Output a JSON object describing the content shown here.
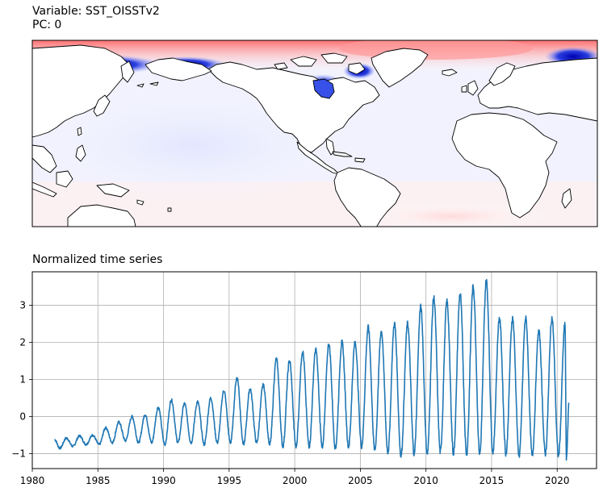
{
  "map_panel": {
    "title_line1": "Variable: SST_OISSTv2",
    "title_line2": "PC: 0",
    "colors": {
      "positive": "#ff0000",
      "negative": "#0000cc",
      "neutral": "#ffffff",
      "coast": "#000000"
    }
  },
  "chart_data": {
    "type": "line",
    "title": "Normalized time series",
    "xlabel": "",
    "ylabel": "",
    "xlim": [
      1980,
      2023
    ],
    "ylim": [
      -1.4,
      3.9
    ],
    "x_ticks": [
      1980,
      1985,
      1990,
      1995,
      2000,
      2005,
      2010,
      2015,
      2020
    ],
    "y_ticks": [
      -1,
      0,
      1,
      2,
      3
    ],
    "grid": true,
    "series_color": "#1f77b4",
    "x_range": [
      1981.7,
      2020.9
    ],
    "seasonal_peaks": [
      {
        "year": 1981.7,
        "value": -0.62
      },
      {
        "year": 1982.6,
        "value": -0.58
      },
      {
        "year": 1983.6,
        "value": -0.52
      },
      {
        "year": 1984.6,
        "value": -0.5
      },
      {
        "year": 1985.6,
        "value": -0.3
      },
      {
        "year": 1986.6,
        "value": -0.15
      },
      {
        "year": 1987.6,
        "value": 0.0
      },
      {
        "year": 1988.6,
        "value": 0.05
      },
      {
        "year": 1989.6,
        "value": 0.25
      },
      {
        "year": 1990.6,
        "value": 0.45
      },
      {
        "year": 1991.6,
        "value": 0.35
      },
      {
        "year": 1992.6,
        "value": 0.4
      },
      {
        "year": 1993.6,
        "value": 0.5
      },
      {
        "year": 1994.6,
        "value": 0.7
      },
      {
        "year": 1995.6,
        "value": 1.05
      },
      {
        "year": 1996.6,
        "value": 0.75
      },
      {
        "year": 1997.6,
        "value": 0.85
      },
      {
        "year": 1998.6,
        "value": 1.55
      },
      {
        "year": 1999.6,
        "value": 1.5
      },
      {
        "year": 2000.6,
        "value": 1.75
      },
      {
        "year": 2001.6,
        "value": 1.8
      },
      {
        "year": 2002.6,
        "value": 1.95
      },
      {
        "year": 2003.6,
        "value": 2.0
      },
      {
        "year": 2004.6,
        "value": 2.0
      },
      {
        "year": 2005.6,
        "value": 2.4
      },
      {
        "year": 2006.6,
        "value": 2.3
      },
      {
        "year": 2007.6,
        "value": 2.5
      },
      {
        "year": 2008.6,
        "value": 2.5
      },
      {
        "year": 2009.6,
        "value": 2.95
      },
      {
        "year": 2010.6,
        "value": 3.2
      },
      {
        "year": 2011.6,
        "value": 3.1
      },
      {
        "year": 2012.6,
        "value": 3.3
      },
      {
        "year": 2013.6,
        "value": 3.5
      },
      {
        "year": 2014.6,
        "value": 3.65
      },
      {
        "year": 2015.6,
        "value": 2.65
      },
      {
        "year": 2016.6,
        "value": 2.65
      },
      {
        "year": 2017.6,
        "value": 2.65
      },
      {
        "year": 2018.6,
        "value": 2.3
      },
      {
        "year": 2019.6,
        "value": 2.65
      },
      {
        "year": 2020.6,
        "value": 2.5
      }
    ],
    "seasonal_troughs": [
      {
        "year": 1982.1,
        "value": -0.85
      },
      {
        "year": 1983.1,
        "value": -0.8
      },
      {
        "year": 1984.1,
        "value": -0.75
      },
      {
        "year": 1985.1,
        "value": -0.75
      },
      {
        "year": 1986.1,
        "value": -0.7
      },
      {
        "year": 1987.1,
        "value": -0.65
      },
      {
        "year": 1988.1,
        "value": -0.7
      },
      {
        "year": 1989.1,
        "value": -0.7
      },
      {
        "year": 1990.1,
        "value": -0.75
      },
      {
        "year": 1991.1,
        "value": -0.7
      },
      {
        "year": 1992.1,
        "value": -0.7
      },
      {
        "year": 1993.1,
        "value": -0.75
      },
      {
        "year": 1994.1,
        "value": -0.7
      },
      {
        "year": 1995.1,
        "value": -0.7
      },
      {
        "year": 1996.1,
        "value": -0.75
      },
      {
        "year": 1997.1,
        "value": -0.7
      },
      {
        "year": 1998.1,
        "value": -0.75
      },
      {
        "year": 1999.1,
        "value": -0.8
      },
      {
        "year": 2000.1,
        "value": -0.8
      },
      {
        "year": 2001.1,
        "value": -0.8
      },
      {
        "year": 2002.1,
        "value": -0.8
      },
      {
        "year": 2003.1,
        "value": -0.85
      },
      {
        "year": 2004.1,
        "value": -0.8
      },
      {
        "year": 2005.1,
        "value": -0.8
      },
      {
        "year": 2006.1,
        "value": -0.9
      },
      {
        "year": 2007.1,
        "value": -0.95
      },
      {
        "year": 2008.1,
        "value": -1.05
      },
      {
        "year": 2009.1,
        "value": -1.0
      },
      {
        "year": 2010.1,
        "value": -1.0
      },
      {
        "year": 2011.1,
        "value": -0.95
      },
      {
        "year": 2012.1,
        "value": -1.0
      },
      {
        "year": 2013.1,
        "value": -1.0
      },
      {
        "year": 2014.1,
        "value": -1.0
      },
      {
        "year": 2015.1,
        "value": -0.95
      },
      {
        "year": 2016.1,
        "value": -1.0
      },
      {
        "year": 2017.1,
        "value": -1.05
      },
      {
        "year": 2018.1,
        "value": -1.05
      },
      {
        "year": 2019.1,
        "value": -1.0
      },
      {
        "year": 2020.1,
        "value": -1.05
      },
      {
        "year": 2020.7,
        "value": -1.15
      }
    ],
    "end_value": {
      "year": 2020.9,
      "value": 0.35
    }
  }
}
